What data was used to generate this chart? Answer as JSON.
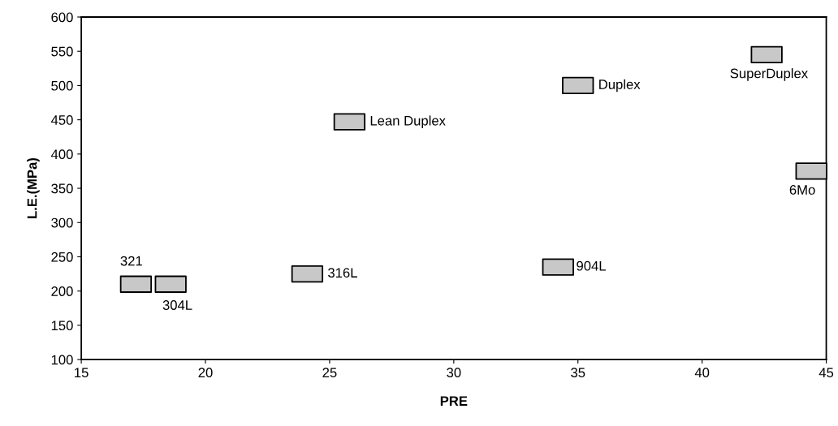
{
  "chart_data": {
    "type": "scatter",
    "xlabel": "PRE",
    "ylabel": "L.E.(MPa)",
    "x": [
      17.2,
      18.6,
      24.1,
      25.8,
      35,
      34.2,
      42.6,
      44.4
    ],
    "values": [
      210,
      210,
      225,
      447,
      500,
      235,
      545,
      375
    ],
    "color": "#c8c8c8",
    "marker": "square",
    "grid": false,
    "xlim": [
      15,
      45
    ],
    "xticks": [
      15,
      20,
      25,
      30,
      35,
      40,
      45
    ],
    "ylim": [
      100,
      600
    ],
    "yticks": [
      100,
      150,
      200,
      250,
      300,
      350,
      400,
      450,
      500,
      550,
      600
    ],
    "annotations": [
      {
        "text": "321",
        "x": 17.2,
        "y": 210
      },
      {
        "text": "304L",
        "x": 18.6,
        "y": 210
      },
      {
        "text": "316L",
        "x": 24.1,
        "y": 225
      },
      {
        "text": "Lean Duplex",
        "x": 25.8,
        "y": 447
      },
      {
        "text": "Duplex",
        "x": 35,
        "y": 500
      },
      {
        "text": "904L",
        "x": 34.2,
        "y": 235
      },
      {
        "text": "SuperDuplex",
        "x": 42.6,
        "y": 545
      },
      {
        "text": "6Mo",
        "x": 44.4,
        "y": 375
      }
    ]
  }
}
